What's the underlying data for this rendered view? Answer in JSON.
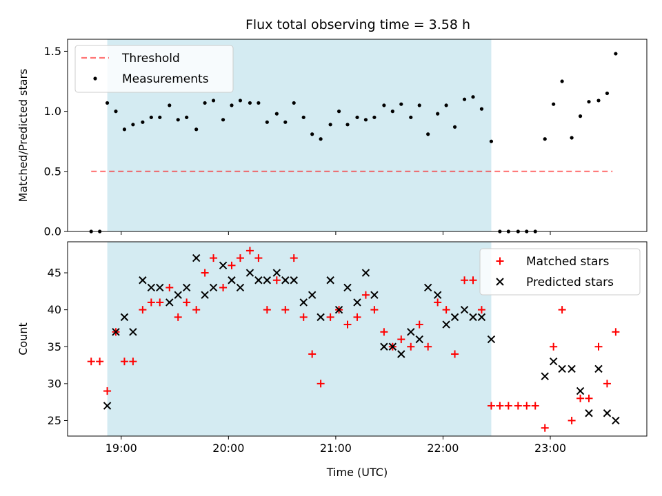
{
  "title": "Flux total observing time = 3.58 h",
  "colors": {
    "shade": "#add8e6",
    "threshold": "#ff0000",
    "measurement": "#000000",
    "matched": "#ff0000",
    "predicted": "#000000"
  },
  "chart_data": [
    {
      "type": "scatter",
      "ylabel": "Matched/Predicted stars",
      "ylim": [
        0,
        1.6
      ],
      "yticks": [
        "0.0",
        "0.5",
        "1.0",
        "1.5"
      ],
      "ytick_values": [
        0,
        0.5,
        1.0,
        1.5
      ],
      "legend": {
        "placement": "upper-left",
        "entries": [
          "Threshold",
          "Measurements"
        ]
      },
      "shaded_span_hours": [
        18.87,
        22.45
      ],
      "threshold": {
        "name": "Threshold",
        "value": 0.5,
        "x_range_hours": [
          18.72,
          23.58
        ],
        "style": "dashed"
      },
      "series": [
        {
          "name": "Measurements",
          "x_hours": [
            18.72,
            18.8,
            18.87,
            18.95,
            19.03,
            19.11,
            19.2,
            19.28,
            19.36,
            19.45,
            19.53,
            19.61,
            19.7,
            19.78,
            19.86,
            19.95,
            20.03,
            20.11,
            20.2,
            20.28,
            20.36,
            20.45,
            20.53,
            20.61,
            20.7,
            20.78,
            20.86,
            20.95,
            21.03,
            21.11,
            21.2,
            21.28,
            21.36,
            21.45,
            21.53,
            21.61,
            21.7,
            21.78,
            21.86,
            21.95,
            22.03,
            22.11,
            22.2,
            22.28,
            22.36,
            22.45,
            22.53,
            22.61,
            22.7,
            22.78,
            22.86,
            22.95,
            23.03,
            23.11,
            23.2,
            23.28,
            23.36,
            23.45,
            23.53,
            23.61
          ],
          "y": [
            0,
            0,
            1.07,
            1.0,
            0.85,
            0.89,
            0.91,
            0.95,
            0.95,
            1.05,
            0.93,
            0.95,
            0.85,
            1.07,
            1.09,
            0.93,
            1.05,
            1.09,
            1.07,
            1.07,
            0.91,
            0.98,
            0.91,
            1.07,
            0.95,
            0.81,
            0.77,
            0.89,
            1.0,
            0.89,
            0.95,
            0.93,
            0.95,
            1.05,
            1.0,
            1.06,
            0.95,
            1.05,
            0.81,
            0.98,
            1.05,
            0.87,
            1.1,
            1.12,
            1.02,
            0.75,
            0,
            0,
            0,
            0,
            0,
            0.77,
            1.06,
            1.25,
            0.78,
            0.96,
            1.08,
            1.09,
            1.15,
            1.48
          ]
        }
      ]
    },
    {
      "type": "scatter",
      "xlabel": "Time (UTC)",
      "ylabel": "Count",
      "ylim": [
        22.9,
        49.2
      ],
      "yticks": [
        "25",
        "30",
        "35",
        "40",
        "45"
      ],
      "ytick_values": [
        25,
        30,
        35,
        40,
        45
      ],
      "xlim_hours": [
        18.5,
        23.9
      ],
      "xticks": [
        "19:00",
        "20:00",
        "21:00",
        "22:00",
        "23:00"
      ],
      "xtick_values": [
        19,
        20,
        21,
        22,
        23
      ],
      "legend": {
        "placement": "upper-right",
        "entries": [
          "Matched stars",
          "Predicted stars"
        ]
      },
      "shaded_span_hours": [
        18.87,
        22.45
      ],
      "series": [
        {
          "name": "Matched stars",
          "marker": "plus",
          "x_hours": [
            18.72,
            18.8,
            18.87,
            18.95,
            19.03,
            19.11,
            19.2,
            19.28,
            19.36,
            19.45,
            19.53,
            19.61,
            19.7,
            19.78,
            19.86,
            19.95,
            20.03,
            20.11,
            20.2,
            20.28,
            20.36,
            20.45,
            20.53,
            20.61,
            20.7,
            20.78,
            20.86,
            20.95,
            21.03,
            21.11,
            21.2,
            21.28,
            21.36,
            21.45,
            21.53,
            21.61,
            21.7,
            21.78,
            21.86,
            21.95,
            22.03,
            22.11,
            22.2,
            22.28,
            22.36,
            22.45,
            22.53,
            22.61,
            22.7,
            22.78,
            22.86,
            22.95,
            23.03,
            23.11,
            23.2,
            23.28,
            23.36,
            23.45,
            23.53,
            23.61
          ],
          "y": [
            33,
            33,
            29,
            37,
            33,
            33,
            40,
            41,
            41,
            43,
            39,
            41,
            40,
            45,
            47,
            43,
            46,
            47,
            48,
            47,
            40,
            44,
            40,
            47,
            39,
            34,
            30,
            39,
            40,
            38,
            39,
            42,
            40,
            37,
            35,
            36,
            35,
            38,
            35,
            41,
            40,
            34,
            44,
            44,
            40,
            27,
            27,
            27,
            27,
            27,
            27,
            24,
            35,
            40,
            25,
            28,
            28,
            35,
            30,
            37
          ]
        },
        {
          "name": "Predicted stars",
          "marker": "x",
          "x_hours": [
            18.87,
            18.95,
            19.03,
            19.11,
            19.2,
            19.28,
            19.36,
            19.45,
            19.53,
            19.61,
            19.7,
            19.78,
            19.86,
            19.95,
            20.03,
            20.11,
            20.2,
            20.28,
            20.36,
            20.45,
            20.53,
            20.61,
            20.7,
            20.78,
            20.86,
            20.95,
            21.03,
            21.11,
            21.2,
            21.28,
            21.36,
            21.45,
            21.53,
            21.61,
            21.7,
            21.78,
            21.86,
            21.95,
            22.03,
            22.11,
            22.2,
            22.28,
            22.36,
            22.45,
            22.95,
            23.03,
            23.11,
            23.2,
            23.28,
            23.36,
            23.45,
            23.53,
            23.61
          ],
          "y": [
            27,
            37,
            39,
            37,
            44,
            43,
            43,
            41,
            42,
            43,
            47,
            42,
            43,
            46,
            44,
            43,
            45,
            44,
            44,
            45,
            44,
            44,
            41,
            42,
            39,
            44,
            40,
            43,
            41,
            45,
            42,
            35,
            35,
            34,
            37,
            36,
            43,
            42,
            38,
            39,
            40,
            39,
            39,
            36,
            31,
            33,
            32,
            32,
            29,
            26,
            32,
            26,
            25
          ]
        }
      ]
    }
  ]
}
